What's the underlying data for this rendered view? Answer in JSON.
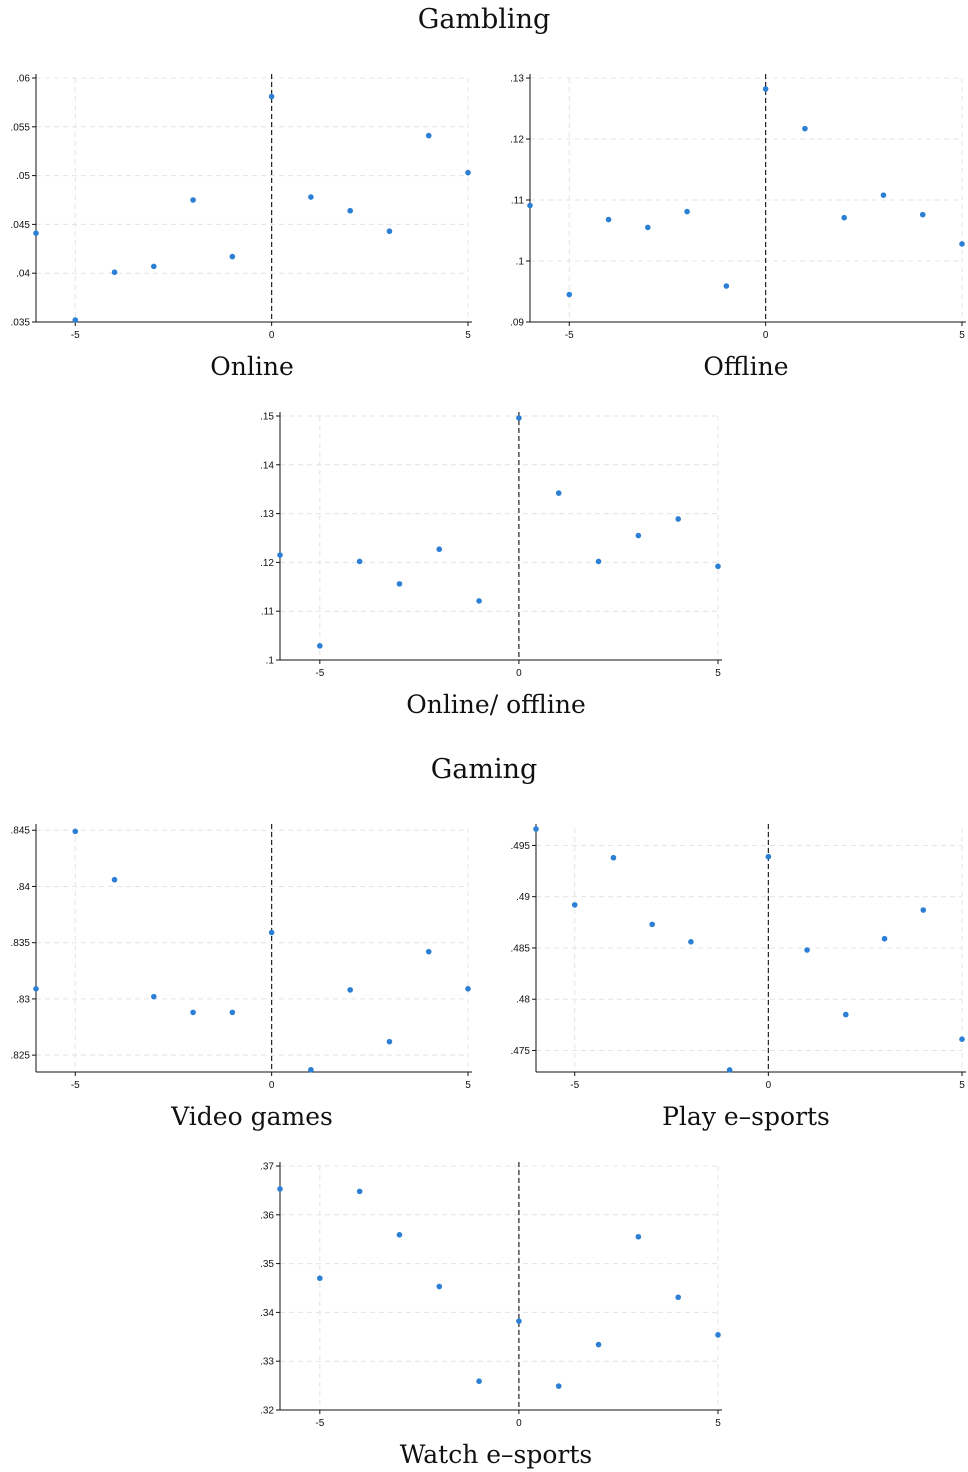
{
  "sections": {
    "gambling_title": "Gambling",
    "gaming_title": "Gaming"
  },
  "colors": {
    "marker": "#2b7fd4",
    "grid": "#e4e4e4",
    "axis": "#111111",
    "ref_line": "#222222"
  },
  "chart_data": [
    {
      "type": "scatter",
      "title": "Online",
      "xlim": [
        -6,
        5
      ],
      "ylim": [
        0.035,
        0.06
      ],
      "xticks": [
        "-5",
        "0",
        "5"
      ],
      "yticks": [
        ".035",
        ".04",
        ".045",
        ".05",
        ".055",
        ".06"
      ],
      "grid": true,
      "vline_x": 0,
      "x": [
        -6,
        -5,
        -4,
        -3,
        -2,
        -1,
        0,
        1,
        2,
        3,
        4,
        5
      ],
      "y": [
        0.0441,
        0.0352,
        0.0401,
        0.0407,
        0.0475,
        0.0417,
        0.0581,
        0.0478,
        0.0464,
        0.0443,
        0.0541,
        0.0503
      ]
    },
    {
      "type": "scatter",
      "title": "Offline",
      "xlim": [
        -6,
        5
      ],
      "ylim": [
        0.09,
        0.13
      ],
      "xticks": [
        "-5",
        "0",
        "5"
      ],
      "yticks": [
        ".09",
        ".1",
        ".11",
        ".12",
        ".13"
      ],
      "grid": true,
      "vline_x": 0,
      "x": [
        -6,
        -5,
        -4,
        -3,
        -2,
        -1,
        0,
        1,
        2,
        3,
        4,
        5
      ],
      "y": [
        0.1091,
        0.0945,
        0.1068,
        0.1055,
        0.1081,
        0.0959,
        0.1282,
        0.1217,
        0.1071,
        0.1108,
        0.1076,
        0.1028
      ]
    },
    {
      "type": "scatter",
      "title": "Online/ offline",
      "xlim": [
        -6,
        5
      ],
      "ylim": [
        0.1,
        0.15
      ],
      "xticks": [
        "-5",
        "0",
        "5"
      ],
      "yticks": [
        ".1",
        ".11",
        ".12",
        ".13",
        ".14",
        ".15"
      ],
      "grid": true,
      "vline_x": 0,
      "x": [
        -6,
        -5,
        -4,
        -3,
        -2,
        -1,
        0,
        1,
        2,
        3,
        4,
        5
      ],
      "y": [
        0.1215,
        0.1029,
        0.1202,
        0.1156,
        0.1227,
        0.1121,
        0.1496,
        0.1342,
        0.1202,
        0.1255,
        0.1289,
        0.1192
      ]
    },
    {
      "type": "scatter",
      "title": "Video games",
      "xlim": [
        -6,
        5
      ],
      "ylim": [
        0.8235,
        0.8452
      ],
      "xticks": [
        "-5",
        "0",
        "5"
      ],
      "yticks": [
        ".825",
        ".83",
        ".835",
        ".84",
        ".845"
      ],
      "grid": true,
      "vline_x": 0,
      "x": [
        -6,
        -5,
        -4,
        -3,
        -2,
        -1,
        0,
        1,
        2,
        3,
        4,
        5
      ],
      "y": [
        0.8309,
        0.8449,
        0.8406,
        0.8302,
        0.8288,
        0.8288,
        0.8359,
        0.8237,
        0.8308,
        0.8262,
        0.8342,
        0.8309
      ]
    },
    {
      "type": "scatter",
      "title": "Play e–sports",
      "xlim": [
        -6,
        5
      ],
      "ylim": [
        0.4729,
        0.4967
      ],
      "xticks": [
        "-5",
        "0",
        "5"
      ],
      "yticks": [
        ".475",
        ".48",
        ".485",
        ".49",
        ".495"
      ],
      "grid": true,
      "vline_x": 0,
      "x": [
        -6,
        -5,
        -4,
        -3,
        -2,
        -1,
        0,
        1,
        2,
        3,
        4,
        5
      ],
      "y": [
        0.4966,
        0.4892,
        0.4938,
        0.4873,
        0.4856,
        0.4731,
        0.4939,
        0.4848,
        0.4785,
        0.4859,
        0.4887,
        0.4761
      ]
    },
    {
      "type": "scatter",
      "title": "Watch e–sports",
      "xlim": [
        -6,
        5
      ],
      "ylim": [
        0.32,
        0.37
      ],
      "xticks": [
        "-5",
        "0",
        "5"
      ],
      "yticks": [
        ".32",
        ".33",
        ".34",
        ".35",
        ".36",
        ".37"
      ],
      "grid": true,
      "vline_x": 0,
      "x": [
        -6,
        -5,
        -4,
        -3,
        -2,
        -1,
        0,
        1,
        2,
        3,
        4,
        5
      ],
      "y": [
        0.3653,
        0.347,
        0.3648,
        0.3559,
        0.3453,
        0.3259,
        0.3382,
        0.3249,
        0.3334,
        0.3555,
        0.3431,
        0.3354
      ]
    }
  ]
}
